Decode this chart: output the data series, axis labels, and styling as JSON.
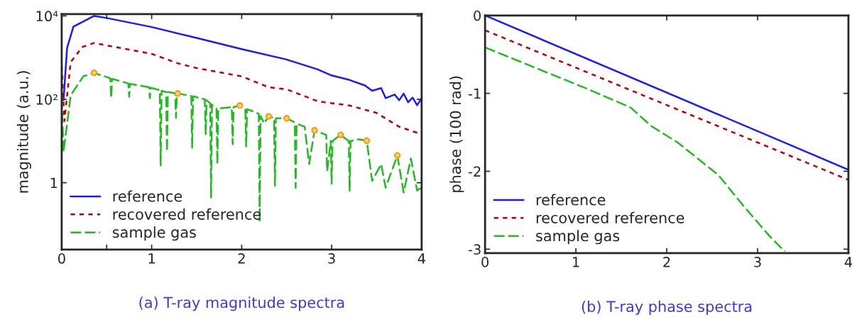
{
  "chart_data": [
    {
      "type": "line",
      "ylabel": "magnitude (a.u.)",
      "log": "y",
      "xlim": [
        0,
        4
      ],
      "ylim": [
        0.025,
        11000
      ],
      "xticks": [
        0,
        {
          "value": 0.5,
          "label": null
        },
        1,
        2,
        3,
        4
      ],
      "yticks": [
        1,
        {
          "value": 100,
          "label": "10²"
        },
        {
          "value": 10000,
          "label": "10⁴"
        }
      ],
      "legend": "bottom left",
      "grid": false,
      "annotations": [
        "(a) T-ray magnitude spectra"
      ],
      "series": [
        {
          "name": "reference",
          "color": "#1a1aff",
          "line_style": "solid",
          "x": [
            0.02,
            0.06,
            0.13,
            0.36,
            0.5,
            1.0,
            1.5,
            2.0,
            2.49,
            2.84,
            2.99,
            3.2,
            3.37,
            3.45,
            3.55,
            3.6,
            3.7,
            3.75,
            3.8,
            3.85,
            3.9,
            3.95,
            4.0
          ],
          "values": [
            95,
            1700,
            5500,
            10000,
            8900,
            5400,
            2950,
            1600,
            910,
            525,
            380,
            290,
            215,
            160,
            185,
            107,
            130,
            95,
            137,
            85,
            110,
            72,
            107
          ]
        },
        {
          "name": "recovered reference",
          "color": "#c00000",
          "line_style": "dotted",
          "x": [
            0,
            0.03,
            0.1,
            0.23,
            0.36,
            1.0,
            1.3,
            1.5,
            2.0,
            2.3,
            2.5,
            2.85,
            3.2,
            3.5,
            3.75,
            4.0
          ],
          "values": [
            620,
            30,
            780,
            1800,
            2240,
            1230,
            720,
            560,
            355,
            195,
            174,
            89,
            71,
            47,
            22,
            14.5
          ]
        },
        {
          "name": "sample gas",
          "color": "#22bb22",
          "line_style": "dashed",
          "x": [
            0,
            0.02,
            0.1,
            0.24,
            0.36,
            0.54,
            0.55,
            0.56,
            0.74,
            0.75,
            0.76,
            0.97,
            0.98,
            0.99,
            1.09,
            1.1,
            1.11,
            1.16,
            1.17,
            1.18,
            1.26,
            1.27,
            1.28,
            1.29,
            1.44,
            1.45,
            1.46,
            1.59,
            1.6,
            1.61,
            1.65,
            1.66,
            1.67,
            1.72,
            1.73,
            1.74,
            1.89,
            1.9,
            1.91,
            1.98,
            2.04,
            2.05,
            2.06,
            2.1,
            2.19,
            2.2,
            2.21,
            2.25,
            2.3,
            2.36,
            2.37,
            2.38,
            2.5,
            2.59,
            2.6,
            2.61,
            2.7,
            2.75,
            2.81,
            2.94,
            2.95,
            2.99,
            3.0,
            3.01,
            3.1,
            3.19,
            3.2,
            3.21,
            3.3,
            3.39,
            3.45,
            3.55,
            3.6,
            3.73,
            3.8,
            3.88,
            3.95,
            4.0
          ],
          "values": [
            107,
            5.4,
            125,
            355,
            430,
            320,
            107,
            310,
            240,
            115,
            235,
            195,
            107,
            190,
            165,
            2.6,
            160,
            150,
            5.6,
            150,
            140,
            36,
            140,
            138,
            120,
            6.9,
            118,
            100,
            14.5,
            95,
            80,
            0.44,
            75,
            60,
            2.8,
            60,
            65,
            8.3,
            65,
            71,
            60,
            7.4,
            58,
            54,
            45,
            0.115,
            40,
            26.5,
            39,
            36,
            0.85,
            35,
            35,
            28,
            0.76,
            26,
            22,
            2.8,
            18,
            14,
            1.9,
            10,
            0.95,
            10,
            14,
            10,
            0.65,
            10,
            11,
            10.2,
            1.1,
            2.8,
            0.76,
            4.5,
            0.58,
            3.8,
            0.65,
            0.76
          ]
        },
        {
          "type": "scatter",
          "color": "#f5a000",
          "marker": "circle",
          "x": [
            0.36,
            1.29,
            1.98,
            2.3,
            2.5,
            2.81,
            3.1,
            3.39,
            3.73
          ],
          "values": [
            430,
            138,
            71,
            39,
            35,
            18,
            14,
            10.2,
            4.5
          ]
        }
      ]
    },
    {
      "type": "line",
      "ylabel": "phase (100 rad)",
      "xlim": [
        0,
        4
      ],
      "ylim": [
        -3.05,
        0
      ],
      "xticks": [
        0,
        1,
        2,
        3,
        4
      ],
      "yticks": [
        -3,
        -2,
        -1,
        0
      ],
      "legend": "bottom left",
      "grid": false,
      "annotations": [
        "(b) T-ray phase spectra"
      ],
      "series": [
        {
          "name": "reference",
          "color": "#1a1aff",
          "line_style": "solid",
          "x": [
            0,
            4
          ],
          "values": [
            0,
            -1.98
          ]
        },
        {
          "name": "recovered reference",
          "color": "#c00000",
          "line_style": "dotted",
          "x": [
            0,
            4
          ],
          "values": [
            -0.19,
            -2.11
          ]
        },
        {
          "name": "sample gas",
          "color": "#22bb22",
          "line_style": "dashed",
          "x": [
            0,
            1.1,
            1.6,
            1.83,
            2.12,
            2.57,
            2.82,
            3.13,
            3.3
          ],
          "values": [
            -0.41,
            -0.93,
            -1.18,
            -1.42,
            -1.63,
            -2.05,
            -2.41,
            -2.83,
            -3.03
          ]
        }
      ]
    }
  ]
}
